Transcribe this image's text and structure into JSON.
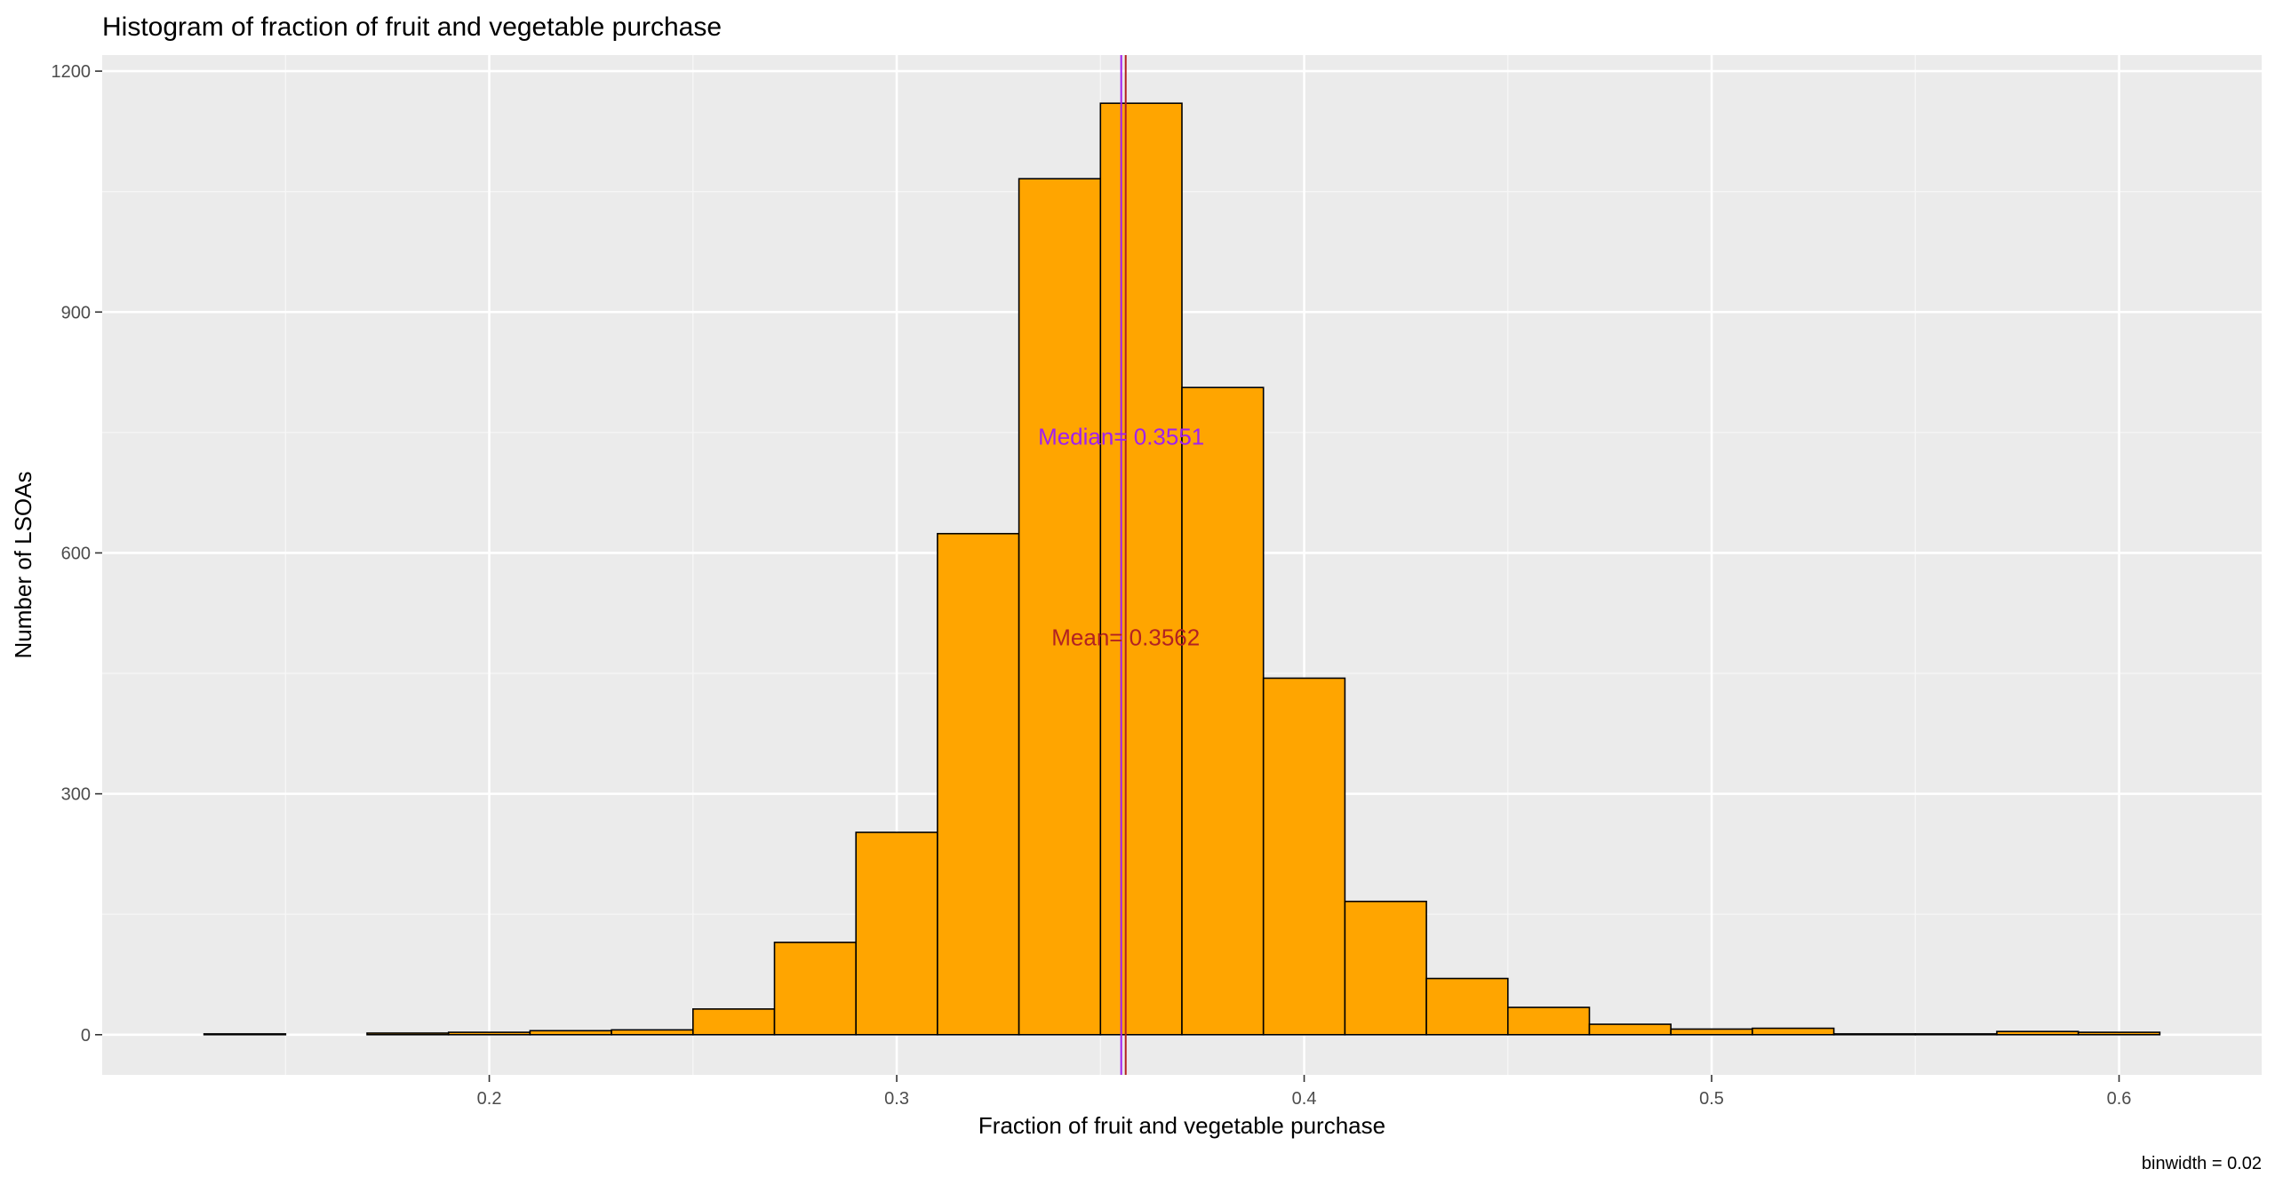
{
  "chart_data": {
    "type": "bar",
    "title": "Histogram of fraction of fruit and vegetable purchase",
    "xlabel": "Fraction of fruit and vegetable purchase",
    "ylabel": "Number of LSOAs",
    "caption": "binwidth = 0.02",
    "xlim": [
      0.105,
      0.635
    ],
    "ylim": [
      -50,
      1220
    ],
    "x_ticks": [
      0.2,
      0.3,
      0.4,
      0.5,
      0.6
    ],
    "x_tick_labels": [
      "0.2",
      "0.3",
      "0.4",
      "0.5",
      "0.6"
    ],
    "y_ticks": [
      0,
      300,
      600,
      900,
      1200
    ],
    "y_tick_labels": [
      "0",
      "300",
      "600",
      "900",
      "1200"
    ],
    "grid": true,
    "binwidth": 0.02,
    "bin_centers": [
      0.14,
      0.16,
      0.18,
      0.2,
      0.22,
      0.24,
      0.26,
      0.28,
      0.3,
      0.32,
      0.34,
      0.36,
      0.38,
      0.4,
      0.42,
      0.44,
      0.46,
      0.48,
      0.5,
      0.52,
      0.54,
      0.56,
      0.58,
      0.6
    ],
    "values": [
      1,
      0,
      2,
      3,
      5,
      6,
      32,
      115,
      252,
      624,
      1066,
      1160,
      806,
      444,
      166,
      70,
      34,
      13,
      7,
      8,
      1,
      1,
      4,
      3
    ],
    "bar_fill": "#FFA500",
    "bar_stroke": "#000000",
    "annotations": [
      {
        "label": "Median=  0.3551",
        "x": 0.3551,
        "text_y": 745,
        "color": "#A020F0",
        "line": true
      },
      {
        "label": "Mean=  0.3562",
        "x": 0.3562,
        "text_y": 495,
        "color": "#B22222",
        "line": true
      }
    ]
  }
}
